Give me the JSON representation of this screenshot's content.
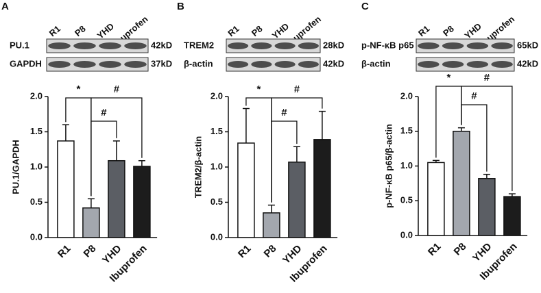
{
  "chart_data": [
    {
      "type": "bar",
      "panel": "A",
      "blot": {
        "lanes": [
          "R1",
          "P8",
          "YHD",
          "Ibuprofen"
        ],
        "rows": [
          {
            "name": "PU.1",
            "size": "42kD"
          },
          {
            "name": "GAPDH",
            "size": "37kD"
          }
        ]
      },
      "ylabel": "PU.1/GAPDH",
      "categories": [
        "R1",
        "P8",
        "YHD",
        "Ibuprofen"
      ],
      "values": [
        1.37,
        0.42,
        1.09,
        1.01
      ],
      "errors": [
        0.23,
        0.13,
        0.28,
        0.08
      ],
      "colors": [
        "#ffffff",
        "#a3a7ae",
        "#5b5e64",
        "#1c1c1c"
      ],
      "ylim": [
        0,
        2.0
      ],
      "yticks": [
        {
          "value": 0,
          "label": "0.0"
        },
        0.5,
        {
          "value": 1,
          "label": "1.0"
        },
        1.5,
        {
          "value": 2,
          "label": "2.0"
        }
      ],
      "annotations": [
        {
          "text": "*",
          "from": 0,
          "to": 1
        },
        {
          "text": "#",
          "from": 1,
          "to": 3
        },
        {
          "text": "#",
          "from": 1,
          "to": 2
        }
      ]
    },
    {
      "type": "bar",
      "panel": "B",
      "blot": {
        "lanes": [
          "R1",
          "P8",
          "YHD",
          "Ibuprofen"
        ],
        "rows": [
          {
            "name": "TREM2",
            "size": "28kD"
          },
          {
            "name": "β-actin",
            "size": "42kD"
          }
        ]
      },
      "ylabel": "TREM2/β-actin",
      "categories": [
        "R1",
        "P8",
        "YHD",
        "Ibuprofen"
      ],
      "values": [
        1.34,
        0.35,
        1.07,
        1.39
      ],
      "errors": [
        0.49,
        0.11,
        0.22,
        0.4
      ],
      "colors": [
        "#ffffff",
        "#a3a7ae",
        "#5b5e64",
        "#1c1c1c"
      ],
      "ylim": [
        0,
        2.0
      ],
      "yticks": [
        {
          "value": 0,
          "label": "0.0"
        },
        0.5,
        {
          "value": 1,
          "label": "1.0"
        },
        1.5,
        {
          "value": 2,
          "label": "2.0"
        }
      ],
      "annotations": [
        {
          "text": "*",
          "from": 0,
          "to": 1
        },
        {
          "text": "#",
          "from": 1,
          "to": 3
        },
        {
          "text": "#",
          "from": 1,
          "to": 2
        }
      ]
    },
    {
      "type": "bar",
      "panel": "C",
      "blot": {
        "lanes": [
          "R1",
          "P8",
          "YHD",
          "Ibuprofen"
        ],
        "rows": [
          {
            "name": "p-NF-κB p65",
            "size": "65kD"
          },
          {
            "name": "β-actin",
            "size": "42kD"
          }
        ]
      },
      "ylabel": "p-NF-κB p65/β-actin",
      "categories": [
        "R1",
        "P8",
        "YHD",
        "Ibuprofen"
      ],
      "values": [
        1.05,
        1.5,
        0.82,
        0.56
      ],
      "errors": [
        0.03,
        0.05,
        0.06,
        0.04
      ],
      "colors": [
        "#ffffff",
        "#a3a7ae",
        "#5b5e64",
        "#1c1c1c"
      ],
      "ylim": [
        0,
        2.0
      ],
      "yticks": [
        {
          "value": 0,
          "label": "0.0"
        },
        0.5,
        {
          "value": 1,
          "label": "1.0"
        },
        1.5,
        {
          "value": 2,
          "label": "2.0"
        }
      ],
      "annotations": [
        {
          "text": "*",
          "from": 0,
          "to": 1
        },
        {
          "text": "#",
          "from": 1,
          "to": 3
        },
        {
          "text": "#",
          "from": 1,
          "to": 2
        }
      ]
    }
  ]
}
